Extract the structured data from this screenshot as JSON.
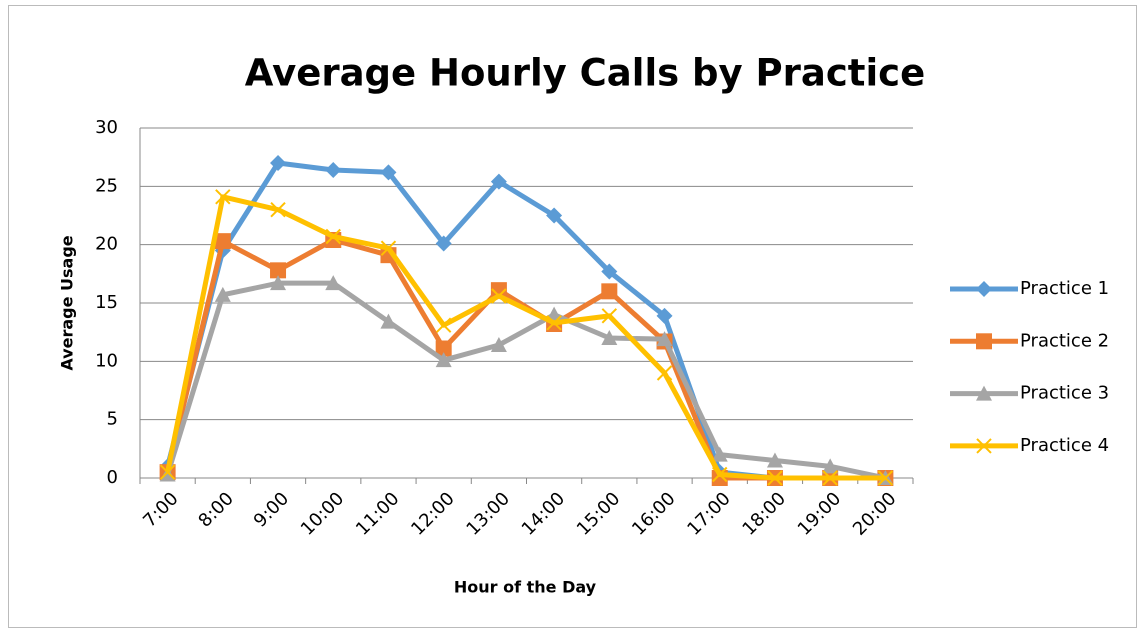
{
  "chart_data": {
    "type": "line",
    "title": "Average Hourly Calls by Practice",
    "x_label": "Hour of the Day",
    "y_label": "Average Usage",
    "categories": [
      "7:00",
      "8:00",
      "9:00",
      "10:00",
      "11:00",
      "12:00",
      "13:00",
      "14:00",
      "15:00",
      "16:00",
      "17:00",
      "18:00",
      "19:00",
      "20:00"
    ],
    "series": [
      {
        "name": "Practice 1",
        "color": "#5b9bd5",
        "values": [
          1.0,
          19.5,
          27,
          26.4,
          26.2,
          20.1,
          25.4,
          22.5,
          17.7,
          13.9,
          0.5,
          0,
          0,
          0
        ]
      },
      {
        "name": "Practice 2",
        "color": "#ed7d31",
        "values": [
          0.5,
          20.3,
          17.8,
          20.4,
          19.1,
          11.1,
          16.1,
          13.2,
          16,
          11.7,
          0,
          0,
          0,
          0
        ]
      },
      {
        "name": "Practice 3",
        "color": "#a5a5a5",
        "values": [
          0.3,
          15.7,
          16.7,
          16.7,
          13.4,
          10.1,
          11.4,
          14,
          12,
          11.9,
          2,
          1.5,
          1,
          0
        ]
      },
      {
        "name": "Practice 4",
        "color": "#ffc000",
        "values": [
          0.5,
          24.1,
          23,
          20.7,
          19.7,
          13.1,
          15.6,
          13.3,
          13.9,
          9,
          0.3,
          0,
          0,
          0
        ]
      }
    ],
    "ylim": [
      0,
      30
    ],
    "yticks": [
      0,
      5,
      10,
      15,
      20,
      25,
      30
    ],
    "grid": true,
    "legend": "right"
  }
}
